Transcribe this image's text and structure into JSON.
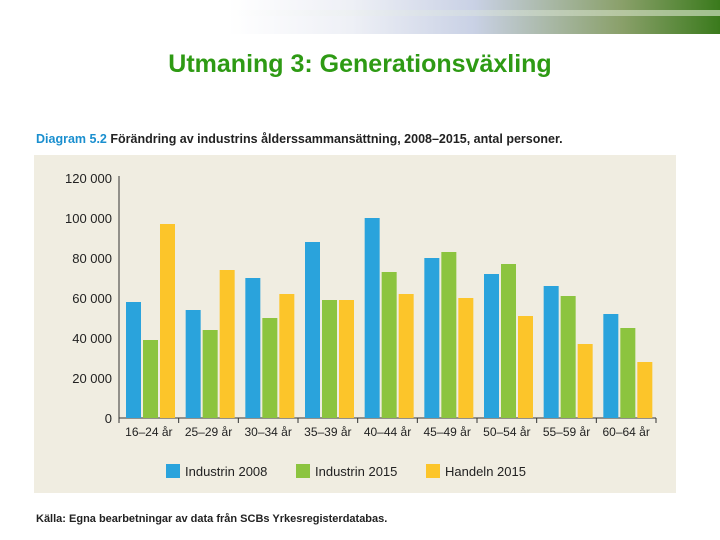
{
  "slide": {
    "title": "Utmaning 3: Generationsväxling"
  },
  "figure": {
    "number": "Diagram 5.2",
    "caption": "Förändring av industrins ålderssammansättning, 2008–2015, antal personer.",
    "source": "Källa: Egna bearbetningar av data från SCBs Yrkesregisterdatabas."
  },
  "chart_data": {
    "type": "bar",
    "title": "Förändring av industrins ålderssammansättning, 2008–2015, antal personer.",
    "xlabel": "",
    "ylabel": "",
    "ylim": [
      0,
      120000
    ],
    "yticks": [
      0,
      20000,
      40000,
      60000,
      80000,
      100000,
      120000
    ],
    "ytick_labels": [
      "0",
      "20 000",
      "40 000",
      "60 000",
      "80 000",
      "100 000",
      "120 000"
    ],
    "categories": [
      "16–24 år",
      "25–29 år",
      "30–34 år",
      "35–39 år",
      "40–44 år",
      "45–49 år",
      "50–54 år",
      "55–59 år",
      "60–64 år"
    ],
    "series": [
      {
        "name": "Industrin 2008",
        "color": "#2aa3dc",
        "values": [
          58000,
          54000,
          70000,
          88000,
          100000,
          80000,
          72000,
          66000,
          52000
        ]
      },
      {
        "name": "Industrin 2015",
        "color": "#8cc43f",
        "values": [
          39000,
          44000,
          50000,
          59000,
          73000,
          83000,
          77000,
          61000,
          45000
        ]
      },
      {
        "name": "Handeln 2015",
        "color": "#fcc52a",
        "values": [
          97000,
          74000,
          62000,
          59000,
          62000,
          60000,
          51000,
          37000,
          28000
        ]
      }
    ],
    "legend_position": "bottom",
    "grid": false
  }
}
